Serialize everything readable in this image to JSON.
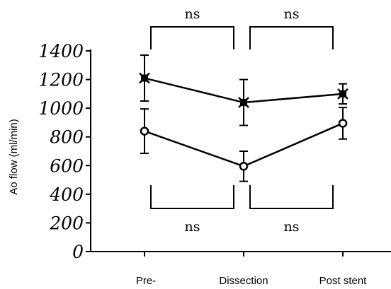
{
  "chart_data": {
    "type": "line",
    "title": "",
    "xlabel": "",
    "ylabel": "Ao flow (ml/min)",
    "ylim": [
      0,
      1400
    ],
    "yticks": [
      0,
      200,
      400,
      600,
      800,
      1000,
      1200,
      1400
    ],
    "ytick_labels": [
      "0",
      "200",
      "400",
      "600",
      "800",
      "1000",
      "1200",
      "1400"
    ],
    "categories": [
      "Pre-",
      "Dissection",
      "Post stent"
    ],
    "grid": false,
    "legend": "none",
    "series": [
      {
        "marker": "x-filled",
        "values": [
          1210,
          1040,
          1100
        ],
        "error": [
          160,
          160,
          70
        ]
      },
      {
        "marker": "open-circle",
        "values": [
          840,
          595,
          895
        ],
        "error": [
          155,
          105,
          110
        ]
      }
    ],
    "annotations": [
      {
        "text": "ns",
        "from": 0,
        "to": 1,
        "series": 0,
        "side": "top"
      },
      {
        "text": "ns",
        "from": 1,
        "to": 2,
        "series": 0,
        "side": "top"
      },
      {
        "text": "ns",
        "from": 0,
        "to": 1,
        "series": 1,
        "side": "bottom"
      },
      {
        "text": "ns",
        "from": 1,
        "to": 2,
        "series": 1,
        "side": "bottom"
      }
    ]
  }
}
